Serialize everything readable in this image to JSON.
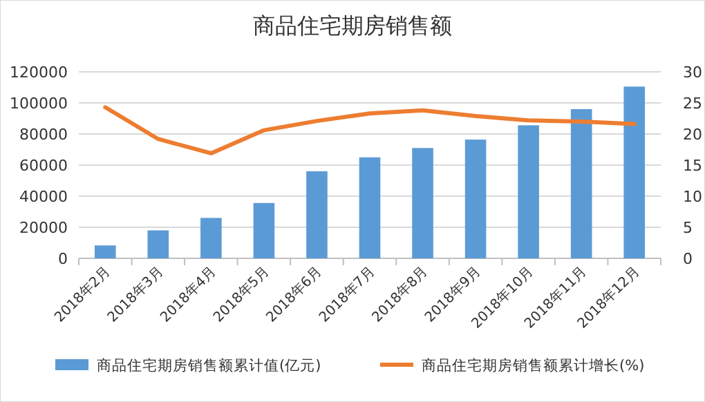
{
  "chart_data": {
    "type": "bar",
    "title": "商品住宅期房销售额",
    "categories": [
      "2018年2月",
      "2018年3月",
      "2018年4月",
      "2018年5月",
      "2018年6月",
      "2018年7月",
      "2018年8月",
      "2018年9月",
      "2018年10月",
      "2018年11月",
      "2018年12月"
    ],
    "series": [
      {
        "name": "商品住宅期房销售额累计值(亿元)",
        "color": "#5b9bd5",
        "values": [
          8300,
          18000,
          26000,
          35600,
          56000,
          65000,
          71000,
          76400,
          85600,
          96000,
          110500
        ]
      },
      {
        "name": "商品住宅期房销售额累计增长(%)",
        "type": "line",
        "axis": "y2",
        "color": "#ed7d31",
        "values": [
          24.3,
          19.2,
          16.9,
          20.6,
          22.1,
          23.3,
          23.8,
          22.9,
          22.2,
          22.0,
          21.6
        ]
      }
    ],
    "ylim": [
      0,
      120000
    ],
    "yticks": [
      0,
      20000,
      40000,
      60000,
      80000,
      100000,
      120000
    ],
    "y2lim": [
      0,
      30
    ],
    "y2ticks": [
      0,
      5,
      10,
      15,
      20,
      25,
      30
    ],
    "grid": "y",
    "legend": "bottom"
  }
}
